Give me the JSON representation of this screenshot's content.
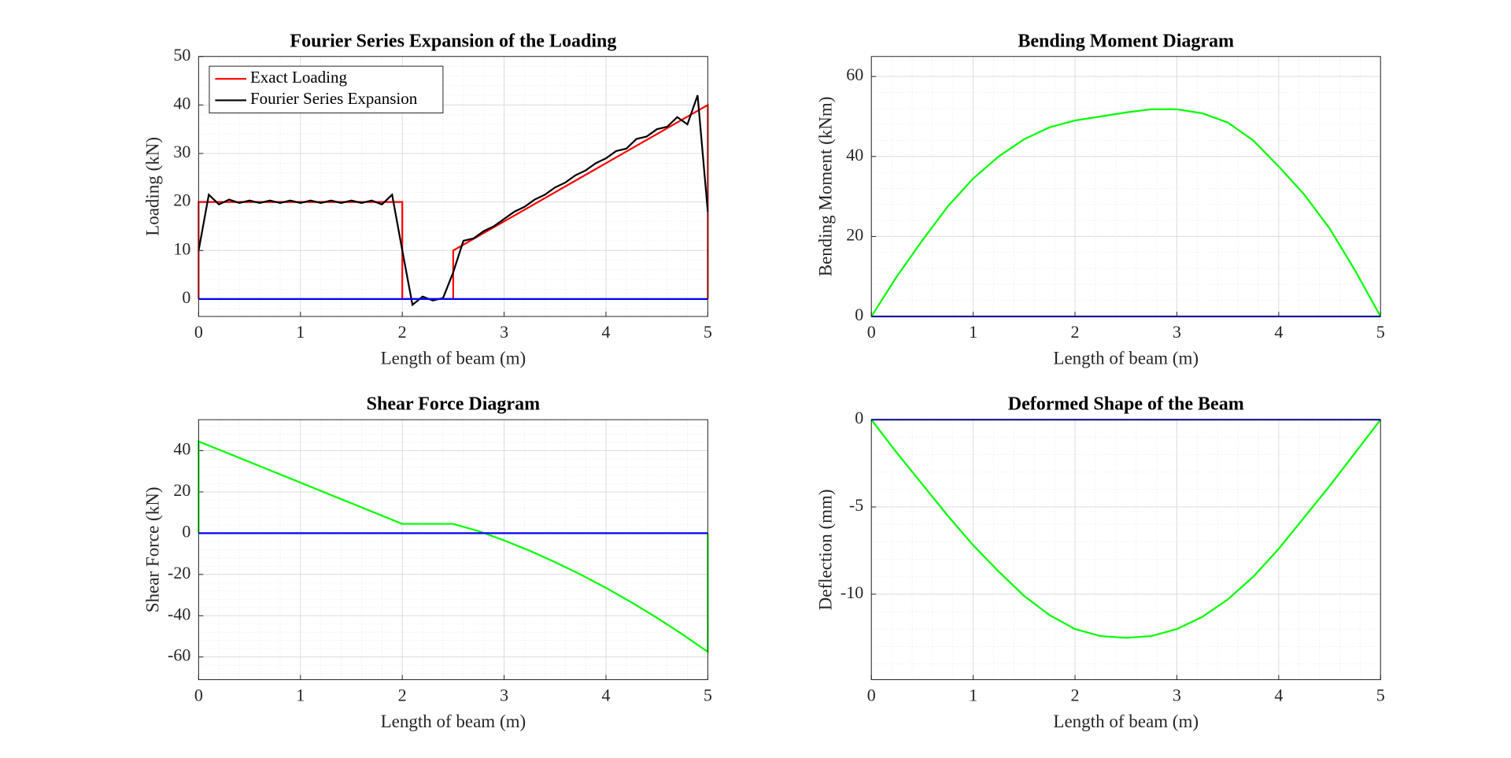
{
  "chart_data": [
    {
      "type": "line",
      "title": "Fourier Series Expansion of the Loading",
      "xlabel": "Length of beam (m)",
      "ylabel": "Loading (kN)",
      "xlim": [
        0,
        5
      ],
      "ylim": [
        -3.6,
        50
      ],
      "xticks": [
        0,
        1,
        2,
        3,
        4,
        5
      ],
      "yticks": [
        0,
        10,
        20,
        30,
        40,
        50
      ],
      "grid": true,
      "minor_grid": true,
      "legend": "northwest",
      "series": [
        {
          "name": "Exact Loading",
          "color": "#ff0000",
          "x": [
            0,
            0,
            2,
            2,
            2.5,
            2.5,
            5,
            5
          ],
          "values": [
            0,
            20,
            20,
            0,
            0,
            10,
            40,
            0
          ]
        },
        {
          "name": "Fourier Series Expansion",
          "color": "#000000",
          "x": [
            0,
            0.1,
            0.2,
            0.3,
            0.4,
            0.5,
            0.6,
            0.7,
            0.8,
            0.9,
            1.0,
            1.1,
            1.2,
            1.3,
            1.4,
            1.5,
            1.6,
            1.7,
            1.8,
            1.9,
            2.0,
            2.1,
            2.2,
            2.3,
            2.4,
            2.5,
            2.6,
            2.7,
            2.8,
            2.9,
            3.0,
            3.1,
            3.2,
            3.3,
            3.4,
            3.5,
            3.6,
            3.7,
            3.8,
            3.9,
            4.0,
            4.1,
            4.2,
            4.3,
            4.4,
            4.5,
            4.6,
            4.7,
            4.8,
            4.9,
            5.0
          ],
          "values": [
            10,
            21.5,
            19.5,
            20.5,
            19.8,
            20.3,
            19.8,
            20.3,
            19.8,
            20.3,
            19.8,
            20.3,
            19.8,
            20.3,
            19.8,
            20.3,
            19.8,
            20.3,
            19.5,
            21.5,
            10,
            -1.2,
            0.5,
            -0.3,
            0.2,
            5.5,
            12,
            12.5,
            14,
            15,
            16.5,
            18,
            19,
            20.5,
            21.5,
            23,
            24,
            25.5,
            26.5,
            28,
            29,
            30.5,
            31,
            33,
            33.5,
            35,
            35.5,
            37.5,
            36,
            42,
            18
          ]
        },
        {
          "color": "#0000ff",
          "x": [
            0,
            5
          ],
          "values": [
            0,
            0
          ]
        }
      ]
    },
    {
      "type": "line",
      "title": "Bending Moment Diagram",
      "xlabel": "Length of beam (m)",
      "ylabel": "Bending Moment (kNm)",
      "xlim": [
        0,
        5
      ],
      "ylim": [
        0,
        65
      ],
      "xticks": [
        0,
        1,
        2,
        3,
        4,
        5
      ],
      "yticks": [
        0,
        20,
        40,
        60
      ],
      "grid": true,
      "minor_grid": true,
      "series": [
        {
          "color": "#00ff00",
          "x": [
            0,
            0.25,
            0.5,
            0.75,
            1,
            1.25,
            1.5,
            1.75,
            2,
            2.25,
            2.5,
            2.75,
            3,
            3.25,
            3.5,
            3.75,
            4,
            4.25,
            4.5,
            4.75,
            5
          ],
          "values": [
            0,
            10,
            19,
            27.5,
            34.5,
            40,
            44.3,
            47.3,
            49,
            50,
            51,
            51.8,
            51.8,
            50.8,
            48.5,
            44,
            37.5,
            30.5,
            22,
            11.5,
            0
          ]
        },
        {
          "color": "#0000ff",
          "x": [
            0,
            5
          ],
          "values": [
            0,
            0
          ]
        }
      ]
    },
    {
      "type": "line",
      "title": "Shear Force Diagram",
      "xlabel": "Length of beam (m)",
      "ylabel": "Shear Force (kN)",
      "xlim": [
        0,
        5
      ],
      "ylim": [
        -71,
        55
      ],
      "xticks": [
        0,
        1,
        2,
        3,
        4,
        5
      ],
      "yticks": [
        -60,
        -40,
        -20,
        0,
        20,
        40
      ],
      "grid": true,
      "minor_grid": true,
      "series": [
        {
          "color": "#00ff00",
          "x": [
            0,
            0,
            2,
            2.5,
            2.75,
            3,
            3.25,
            3.5,
            3.75,
            4,
            4.25,
            4.5,
            4.75,
            5,
            5
          ],
          "values": [
            0,
            44.5,
            4.5,
            4.5,
            1,
            -3.5,
            -8.5,
            -14,
            -20,
            -26.5,
            -33.5,
            -41,
            -49,
            -57.5,
            0
          ]
        },
        {
          "color": "#0000ff",
          "x": [
            0,
            5
          ],
          "values": [
            0,
            0
          ]
        }
      ]
    },
    {
      "type": "line",
      "title": "Deformed Shape of the Beam",
      "xlabel": "Length of beam (m)",
      "ylabel": "Deflection (mm)",
      "xlim": [
        0,
        5
      ],
      "ylim": [
        -14.9,
        0
      ],
      "xticks": [
        0,
        1,
        2,
        3,
        4,
        5
      ],
      "yticks": [
        -10,
        -5,
        0
      ],
      "grid": true,
      "minor_grid": true,
      "series": [
        {
          "color": "#00ff00",
          "x": [
            0,
            0.25,
            0.5,
            0.75,
            1,
            1.25,
            1.5,
            1.75,
            2,
            2.25,
            2.5,
            2.75,
            3,
            3.25,
            3.5,
            3.75,
            4,
            4.25,
            4.5,
            4.75,
            5
          ],
          "values": [
            0,
            -1.9,
            -3.7,
            -5.5,
            -7.2,
            -8.7,
            -10.1,
            -11.2,
            -12,
            -12.4,
            -12.5,
            -12.4,
            -12,
            -11.3,
            -10.3,
            -9,
            -7.4,
            -5.6,
            -3.8,
            -1.9,
            0
          ]
        },
        {
          "color": "#0000ff",
          "x": [
            0,
            5
          ],
          "values": [
            0,
            0
          ]
        }
      ]
    }
  ]
}
